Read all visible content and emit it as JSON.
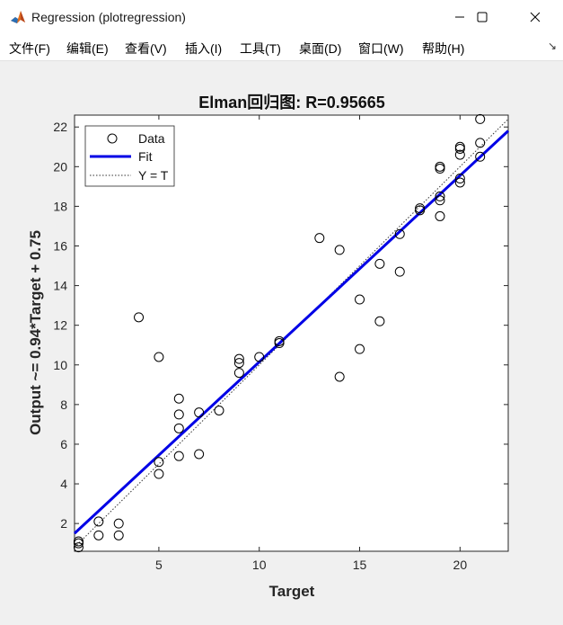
{
  "window": {
    "title": "Regression (plotregression)",
    "controls": {
      "minimize": "minimize",
      "maximize": "maximize",
      "close": "close"
    }
  },
  "menu": {
    "items": [
      "文件(F)",
      "编辑(E)",
      "查看(V)",
      "插入(I)",
      "工具(T)",
      "桌面(D)",
      "窗口(W)",
      "帮助(H)"
    ],
    "overflow": "↘"
  },
  "chart_data": {
    "type": "scatter",
    "title": "Elman回归图: R=0.95665",
    "xlabel": "Target",
    "ylabel": "Output ~= 0.94*Target + 0.75",
    "xlim": [
      0.8,
      22.4
    ],
    "ylim": [
      0.6,
      22.6
    ],
    "xticks": [
      5,
      10,
      15,
      20
    ],
    "yticks": [
      2,
      4,
      6,
      8,
      10,
      12,
      14,
      16,
      18,
      20,
      22
    ],
    "legend_position": "top-left",
    "legend": [
      "Data",
      "Fit",
      "Y = T"
    ],
    "fit": {
      "slope": 0.94,
      "intercept": 0.75
    },
    "points": [
      {
        "x": 1,
        "y": 0.8
      },
      {
        "x": 1,
        "y": 1.0
      },
      {
        "x": 1,
        "y": 1.1
      },
      {
        "x": 2,
        "y": 1.4
      },
      {
        "x": 2,
        "y": 2.1
      },
      {
        "x": 3,
        "y": 1.4
      },
      {
        "x": 3,
        "y": 2.0
      },
      {
        "x": 4,
        "y": 12.4
      },
      {
        "x": 5,
        "y": 10.4
      },
      {
        "x": 5,
        "y": 5.1
      },
      {
        "x": 5,
        "y": 4.5
      },
      {
        "x": 6,
        "y": 8.3
      },
      {
        "x": 6,
        "y": 7.5
      },
      {
        "x": 6,
        "y": 6.8
      },
      {
        "x": 6,
        "y": 5.4
      },
      {
        "x": 7,
        "y": 7.6
      },
      {
        "x": 7,
        "y": 5.5
      },
      {
        "x": 8,
        "y": 7.7
      },
      {
        "x": 9,
        "y": 10.3
      },
      {
        "x": 9,
        "y": 10.1
      },
      {
        "x": 9,
        "y": 9.6
      },
      {
        "x": 10,
        "y": 10.4
      },
      {
        "x": 11,
        "y": 11.2
      },
      {
        "x": 11,
        "y": 11.1
      },
      {
        "x": 13,
        "y": 16.4
      },
      {
        "x": 14,
        "y": 15.8
      },
      {
        "x": 14,
        "y": 9.4
      },
      {
        "x": 15,
        "y": 13.3
      },
      {
        "x": 15,
        "y": 10.8
      },
      {
        "x": 16,
        "y": 15.1
      },
      {
        "x": 16,
        "y": 12.2
      },
      {
        "x": 17,
        "y": 16.6
      },
      {
        "x": 17,
        "y": 14.7
      },
      {
        "x": 18,
        "y": 17.9
      },
      {
        "x": 18,
        "y": 17.8
      },
      {
        "x": 19,
        "y": 20.0
      },
      {
        "x": 19,
        "y": 19.9
      },
      {
        "x": 19,
        "y": 18.5
      },
      {
        "x": 19,
        "y": 18.3
      },
      {
        "x": 19,
        "y": 17.5
      },
      {
        "x": 20,
        "y": 21.0
      },
      {
        "x": 20,
        "y": 20.9
      },
      {
        "x": 20,
        "y": 20.6
      },
      {
        "x": 20,
        "y": 19.4
      },
      {
        "x": 20,
        "y": 19.2
      },
      {
        "x": 21,
        "y": 22.4
      },
      {
        "x": 21,
        "y": 21.2
      },
      {
        "x": 21,
        "y": 20.5
      }
    ]
  }
}
